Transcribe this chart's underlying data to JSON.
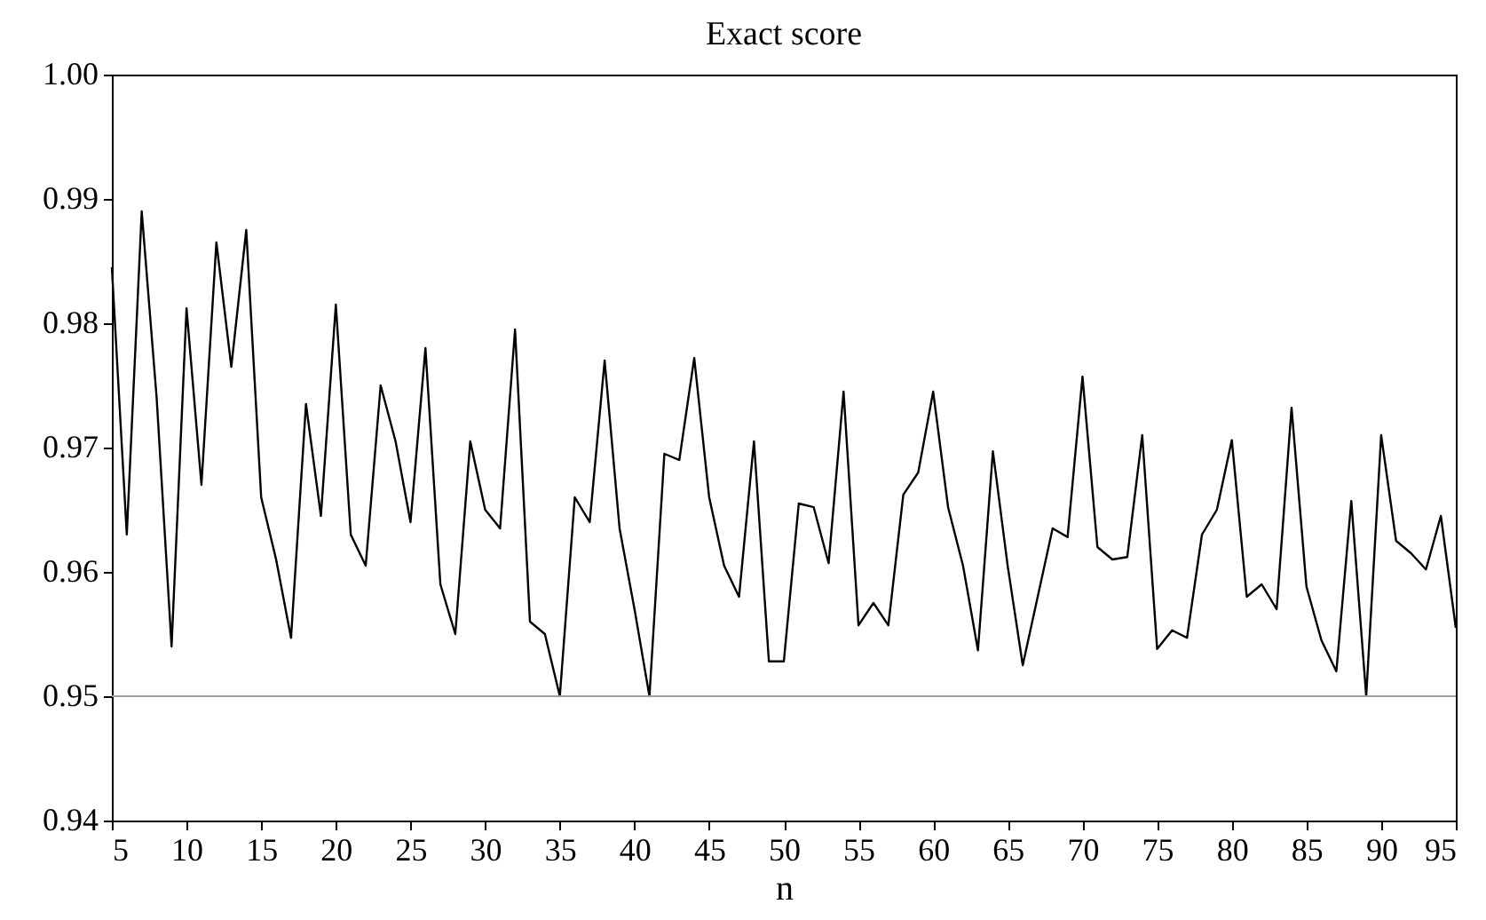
{
  "chart_data": {
    "type": "line",
    "title": "Exact score",
    "xlabel": "n",
    "x": [
      5,
      6,
      7,
      8,
      9,
      10,
      11,
      12,
      13,
      14,
      15,
      16,
      17,
      18,
      19,
      20,
      21,
      22,
      23,
      24,
      25,
      26,
      27,
      28,
      29,
      30,
      31,
      32,
      33,
      34,
      35,
      36,
      37,
      38,
      39,
      40,
      41,
      42,
      43,
      44,
      45,
      46,
      47,
      48,
      49,
      50,
      51,
      52,
      53,
      54,
      55,
      56,
      57,
      58,
      59,
      60,
      61,
      62,
      63,
      64,
      65,
      66,
      67,
      68,
      69,
      70,
      71,
      72,
      73,
      74,
      75,
      76,
      77,
      78,
      79,
      80,
      81,
      82,
      83,
      84,
      85,
      86,
      87,
      88,
      89,
      90,
      91,
      92,
      93,
      94,
      95
    ],
    "series": [
      {
        "color": "#000000",
        "values": [
          0.9845,
          0.963,
          0.989,
          0.974,
          0.954,
          0.9812,
          0.967,
          0.9865,
          0.9765,
          0.9875,
          0.966,
          0.961,
          0.9547,
          0.9735,
          0.9645,
          0.9815,
          0.963,
          0.9605,
          0.975,
          0.9705,
          0.964,
          0.978,
          0.959,
          0.955,
          0.9705,
          0.965,
          0.9635,
          0.9795,
          0.956,
          0.955,
          0.95,
          0.966,
          0.964,
          0.977,
          0.9635,
          0.957,
          0.95,
          0.9695,
          0.969,
          0.9772,
          0.966,
          0.9605,
          0.958,
          0.9705,
          0.9528,
          0.9528,
          0.9655,
          0.9652,
          0.9607,
          0.9745,
          0.9557,
          0.9575,
          0.9557,
          0.9662,
          0.968,
          0.9745,
          0.9652,
          0.9605,
          0.9537,
          0.9697,
          0.9604,
          0.9525,
          0.958,
          0.9635,
          0.9628,
          0.9757,
          0.962,
          0.961,
          0.9612,
          0.971,
          0.9538,
          0.9553,
          0.9547,
          0.963,
          0.965,
          0.9706,
          0.958,
          0.959,
          0.957,
          0.9732,
          0.9588,
          0.9545,
          0.952,
          0.9657,
          0.95,
          0.971,
          0.9625,
          0.9615,
          0.9602,
          0.9645,
          0.9555
        ]
      }
    ],
    "xlim": [
      5,
      95
    ],
    "xticks": [
      5,
      10,
      15,
      20,
      25,
      30,
      35,
      40,
      45,
      50,
      55,
      60,
      65,
      70,
      75,
      80,
      85,
      90,
      95
    ],
    "ylim": [
      0.94,
      1
    ],
    "yticks": [
      0.94,
      0.95,
      0.96,
      0.97,
      0.98,
      0.99,
      {
        "value": 1,
        "label": "1.00"
      }
    ],
    "ref_lines": [
      {
        "axis": "y",
        "value": 0.95,
        "color": "#a0a0a0"
      }
    ]
  }
}
